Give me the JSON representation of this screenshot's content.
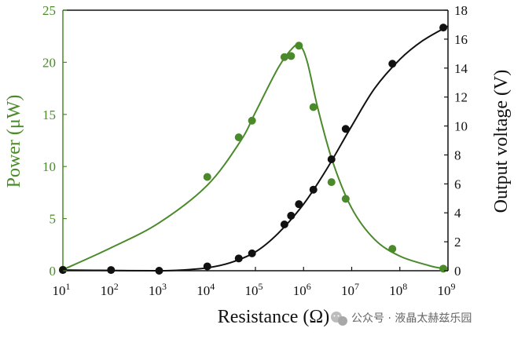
{
  "chart_data": {
    "type": "scatter",
    "x_scale": "log",
    "xlabel": "Resistance (Ω)",
    "ylabel_left": "Power (μW)",
    "ylabel_right": "Output voltage (V)",
    "xlim": [
      10,
      1000000000
    ],
    "ylim_left": [
      0,
      25
    ],
    "ylim_right": [
      0,
      18
    ],
    "x_ticks": [
      {
        "base": "10",
        "exp": "1",
        "value": 10
      },
      {
        "base": "10",
        "exp": "2",
        "value": 100
      },
      {
        "base": "10",
        "exp": "3",
        "value": 1000
      },
      {
        "base": "10",
        "exp": "4",
        "value": 10000
      },
      {
        "base": "10",
        "exp": "5",
        "value": 100000
      },
      {
        "base": "10",
        "exp": "6",
        "value": 1000000
      },
      {
        "base": "10",
        "exp": "7",
        "value": 10000000
      },
      {
        "base": "10",
        "exp": "8",
        "value": 100000000
      },
      {
        "base": "10",
        "exp": "9",
        "value": 1000000000
      }
    ],
    "y_ticks_left": [
      "0",
      "5",
      "10",
      "15",
      "20",
      "25"
    ],
    "y_ticks_right": [
      "0",
      "2",
      "4",
      "6",
      "8",
      "10",
      "12",
      "14",
      "16",
      "18"
    ],
    "grid": false,
    "colors": {
      "power": "#4a8a2a",
      "voltage": "#111111"
    },
    "series": [
      {
        "axis": "left",
        "color": "#4a8a2a",
        "points": [
          {
            "x": 10,
            "y": 0.1
          },
          {
            "x": 10000,
            "y": 9.0
          },
          {
            "x": 45000,
            "y": 12.8
          },
          {
            "x": 85000,
            "y": 14.4
          },
          {
            "x": 400000,
            "y": 20.5
          },
          {
            "x": 550000,
            "y": 20.6
          },
          {
            "x": 800000,
            "y": 21.6
          },
          {
            "x": 1600000,
            "y": 15.7
          },
          {
            "x": 3800000,
            "y": 8.5
          },
          {
            "x": 7500000,
            "y": 6.9
          },
          {
            "x": 70000000,
            "y": 2.1
          },
          {
            "x": 800000000,
            "y": 0.2
          }
        ],
        "curve": [
          {
            "x": 10,
            "y": 0.1
          },
          {
            "x": 100,
            "y": 2.2
          },
          {
            "x": 1000,
            "y": 4.6
          },
          {
            "x": 10000,
            "y": 8.2
          },
          {
            "x": 50000,
            "y": 12.5
          },
          {
            "x": 100000,
            "y": 15.2
          },
          {
            "x": 300000,
            "y": 19.5
          },
          {
            "x": 600000,
            "y": 21.4
          },
          {
            "x": 850000,
            "y": 21.6
          },
          {
            "x": 1200000,
            "y": 20.0
          },
          {
            "x": 2000000,
            "y": 15.5
          },
          {
            "x": 4000000,
            "y": 10.5
          },
          {
            "x": 10000000,
            "y": 6.0
          },
          {
            "x": 30000000,
            "y": 3.0
          },
          {
            "x": 100000000,
            "y": 1.4
          },
          {
            "x": 400000000,
            "y": 0.5
          },
          {
            "x": 800000000,
            "y": 0.2
          }
        ]
      },
      {
        "axis": "right",
        "color": "#111111",
        "points": [
          {
            "x": 10,
            "y": 0.05
          },
          {
            "x": 100,
            "y": 0.05
          },
          {
            "x": 1000,
            "y": 0.0
          },
          {
            "x": 10000,
            "y": 0.3
          },
          {
            "x": 45000,
            "y": 0.85
          },
          {
            "x": 85000,
            "y": 1.2
          },
          {
            "x": 400000,
            "y": 3.2
          },
          {
            "x": 550000,
            "y": 3.8
          },
          {
            "x": 800000,
            "y": 4.6
          },
          {
            "x": 1600000,
            "y": 5.6
          },
          {
            "x": 3800000,
            "y": 7.7
          },
          {
            "x": 7500000,
            "y": 9.8
          },
          {
            "x": 70000000,
            "y": 14.3
          },
          {
            "x": 800000000,
            "y": 16.8
          }
        ],
        "curve": [
          {
            "x": 10,
            "y": 0.05
          },
          {
            "x": 100,
            "y": 0.02
          },
          {
            "x": 1000,
            "y": 0.0
          },
          {
            "x": 3000,
            "y": 0.05
          },
          {
            "x": 10000,
            "y": 0.2
          },
          {
            "x": 30000,
            "y": 0.55
          },
          {
            "x": 100000,
            "y": 1.3
          },
          {
            "x": 300000,
            "y": 2.6
          },
          {
            "x": 1000000,
            "y": 4.6
          },
          {
            "x": 3000000,
            "y": 7.0
          },
          {
            "x": 10000000,
            "y": 10.0
          },
          {
            "x": 30000000,
            "y": 12.6
          },
          {
            "x": 100000000,
            "y": 14.6
          },
          {
            "x": 300000000,
            "y": 15.9
          },
          {
            "x": 1000000000,
            "y": 16.9
          }
        ]
      }
    ]
  },
  "watermark": {
    "text": "公众号 · 液晶太赫兹乐园",
    "icon": "wechat-icon"
  }
}
